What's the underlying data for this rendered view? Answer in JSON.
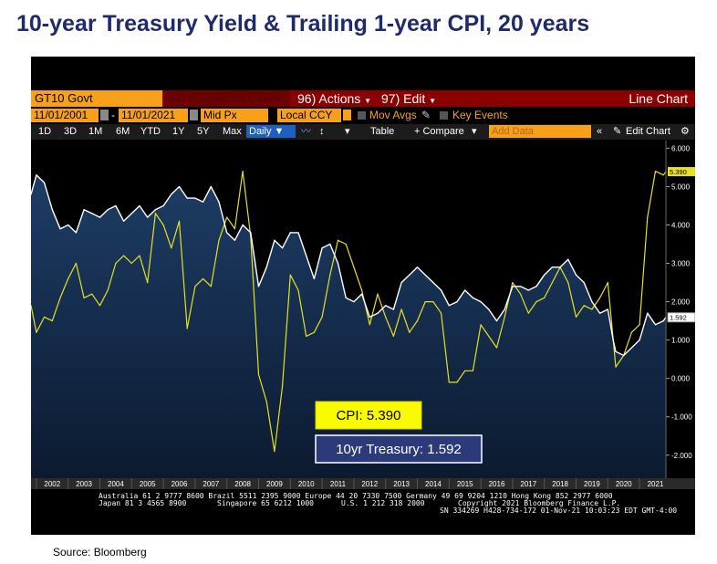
{
  "title": "10-year Treasury Yield & Trailing 1-year CPI, 20 years",
  "source": "Source: Bloomberg",
  "terminal": {
    "ticker": "GT10 Govt",
    "suggested_charts": "94) Suggested Charts",
    "actions": "96) Actions",
    "edit": "97) Edit",
    "chart_type": "Line Chart",
    "start_date": "11/01/2001",
    "end_date": "11/01/2021",
    "price_field": "Mid Px",
    "currency": "Local CCY",
    "mov_avgs": "Mov Avgs",
    "key_events": "Key Events",
    "periods": [
      "1D",
      "3D",
      "1M",
      "6M",
      "YTD",
      "1Y",
      "5Y",
      "Max"
    ],
    "frequency": "Daily",
    "table_label": "Table",
    "compare_label": "+ Compare",
    "add_data_placeholder": "Add Data",
    "edit_chart_label": "Edit Chart",
    "footer_line1": "Australia 61 2 9777 8600 Brazil 5511 2395 9000 Europe 44 20 7330 7500 Germany 49 69 9204 1210 Hong Kong 852 2977 6000",
    "footer_line2_left": "Japan 81 3 4565 8900",
    "footer_line2_mid": "Singapore 65 6212 1000",
    "footer_line2_us": "U.S. 1 212 318 2000",
    "footer_copyright": "Copyright 2021 Bloomberg Finance L.P.",
    "footer_sn": "SN 334269 H428-734-172 01-Nov-21 10:03:23 EDT  GMT-4:00"
  },
  "colors": {
    "treasury": "#ffffff",
    "cpi": "#e8e020",
    "area_top": "#1d3d66",
    "area_bottom": "#0c1a30",
    "title": "#1f2a6b",
    "bloomberg_orange": "#f7a11a"
  },
  "chart_data": {
    "type": "line",
    "xlabel": "",
    "ylabel": "",
    "xlim": [
      2001.83,
      2021.83
    ],
    "ylim": [
      -2.6,
      6.2
    ],
    "x_ticks": [
      "2002",
      "2003",
      "2004",
      "2005",
      "2006",
      "2007",
      "2008",
      "2009",
      "2010",
      "2011",
      "2012",
      "2013",
      "2014",
      "2015",
      "2016",
      "2017",
      "2018",
      "2019",
      "2020",
      "2021"
    ],
    "y_ticks": [
      "6.000",
      "5.000",
      "4.000",
      "3.000",
      "2.000",
      "1.000",
      "0.000",
      "-1.000",
      "-2.000"
    ],
    "series": [
      {
        "name": "10yr Treasury",
        "last_value_label": "1.592",
        "x": [
          2001.83,
          2002.0,
          2002.25,
          2002.5,
          2002.75,
          2003.0,
          2003.25,
          2003.5,
          2003.75,
          2004.0,
          2004.25,
          2004.5,
          2004.75,
          2005.0,
          2005.25,
          2005.5,
          2005.75,
          2006.0,
          2006.25,
          2006.5,
          2006.75,
          2007.0,
          2007.25,
          2007.5,
          2007.75,
          2008.0,
          2008.25,
          2008.5,
          2008.75,
          2009.0,
          2009.25,
          2009.5,
          2009.75,
          2010.0,
          2010.25,
          2010.5,
          2010.75,
          2011.0,
          2011.25,
          2011.5,
          2011.75,
          2012.0,
          2012.25,
          2012.5,
          2012.75,
          2013.0,
          2013.25,
          2013.5,
          2013.75,
          2014.0,
          2014.25,
          2014.5,
          2014.75,
          2015.0,
          2015.25,
          2015.5,
          2015.75,
          2016.0,
          2016.25,
          2016.5,
          2016.75,
          2017.0,
          2017.25,
          2017.5,
          2017.75,
          2018.0,
          2018.25,
          2018.5,
          2018.75,
          2019.0,
          2019.25,
          2019.5,
          2019.75,
          2020.0,
          2020.17,
          2020.25,
          2020.5,
          2020.75,
          2021.0,
          2021.25,
          2021.5,
          2021.75,
          2021.83
        ],
        "y": [
          4.8,
          5.3,
          5.1,
          4.4,
          3.9,
          4.0,
          3.8,
          4.4,
          4.3,
          4.2,
          4.4,
          4.5,
          4.1,
          4.3,
          4.5,
          4.2,
          4.4,
          4.5,
          4.8,
          5.0,
          4.7,
          4.7,
          4.6,
          5.0,
          4.6,
          3.8,
          3.6,
          4.0,
          3.8,
          2.4,
          2.9,
          3.6,
          3.4,
          3.8,
          3.8,
          3.2,
          2.6,
          3.4,
          3.5,
          3.0,
          2.1,
          2.0,
          2.2,
          1.6,
          1.7,
          1.9,
          1.8,
          2.5,
          2.7,
          2.9,
          2.7,
          2.5,
          2.3,
          1.9,
          2.0,
          2.3,
          2.1,
          2.0,
          1.8,
          1.5,
          1.8,
          2.4,
          2.4,
          2.3,
          2.4,
          2.7,
          2.9,
          2.9,
          3.1,
          2.7,
          2.5,
          2.0,
          1.7,
          1.8,
          1.0,
          0.7,
          0.6,
          0.8,
          1.0,
          1.7,
          1.4,
          1.5,
          1.592
        ]
      },
      {
        "name": "CPI",
        "last_value_label": "5.390",
        "x": [
          2001.83,
          2002.0,
          2002.25,
          2002.5,
          2002.75,
          2003.0,
          2003.25,
          2003.5,
          2003.75,
          2004.0,
          2004.25,
          2004.5,
          2004.75,
          2005.0,
          2005.25,
          2005.5,
          2005.75,
          2006.0,
          2006.25,
          2006.5,
          2006.75,
          2007.0,
          2007.25,
          2007.5,
          2007.75,
          2008.0,
          2008.25,
          2008.5,
          2008.75,
          2009.0,
          2009.25,
          2009.5,
          2009.75,
          2010.0,
          2010.25,
          2010.5,
          2010.75,
          2011.0,
          2011.25,
          2011.5,
          2011.75,
          2012.0,
          2012.25,
          2012.5,
          2012.75,
          2013.0,
          2013.25,
          2013.5,
          2013.75,
          2014.0,
          2014.25,
          2014.5,
          2014.75,
          2015.0,
          2015.25,
          2015.5,
          2015.75,
          2016.0,
          2016.25,
          2016.5,
          2016.75,
          2017.0,
          2017.25,
          2017.5,
          2017.75,
          2018.0,
          2018.25,
          2018.5,
          2018.75,
          2019.0,
          2019.25,
          2019.5,
          2019.75,
          2020.0,
          2020.25,
          2020.5,
          2020.75,
          2021.0,
          2021.25,
          2021.5,
          2021.75,
          2021.83
        ],
        "y": [
          1.9,
          1.2,
          1.6,
          1.5,
          2.1,
          2.6,
          3.0,
          2.1,
          2.2,
          1.9,
          2.3,
          3.0,
          3.2,
          3.0,
          3.2,
          2.5,
          4.3,
          4.0,
          3.4,
          4.1,
          1.3,
          2.4,
          2.6,
          2.4,
          3.6,
          4.2,
          3.9,
          5.4,
          3.7,
          0.1,
          -0.6,
          -1.9,
          -0.2,
          2.7,
          2.3,
          1.1,
          1.2,
          1.6,
          2.7,
          3.6,
          3.5,
          2.9,
          2.3,
          1.4,
          2.2,
          1.6,
          1.1,
          1.8,
          1.2,
          1.5,
          2.0,
          2.0,
          1.7,
          -0.1,
          -0.1,
          0.2,
          0.2,
          1.4,
          1.1,
          0.8,
          1.6,
          2.5,
          2.2,
          1.7,
          2.0,
          2.1,
          2.5,
          2.9,
          2.5,
          1.6,
          1.9,
          1.8,
          2.1,
          2.5,
          0.3,
          0.6,
          1.2,
          1.4,
          4.2,
          5.4,
          5.3,
          5.39
        ]
      }
    ],
    "callouts": [
      {
        "label": "CPI: 5.390"
      },
      {
        "label": "10yr Treasury: 1.592"
      }
    ]
  }
}
